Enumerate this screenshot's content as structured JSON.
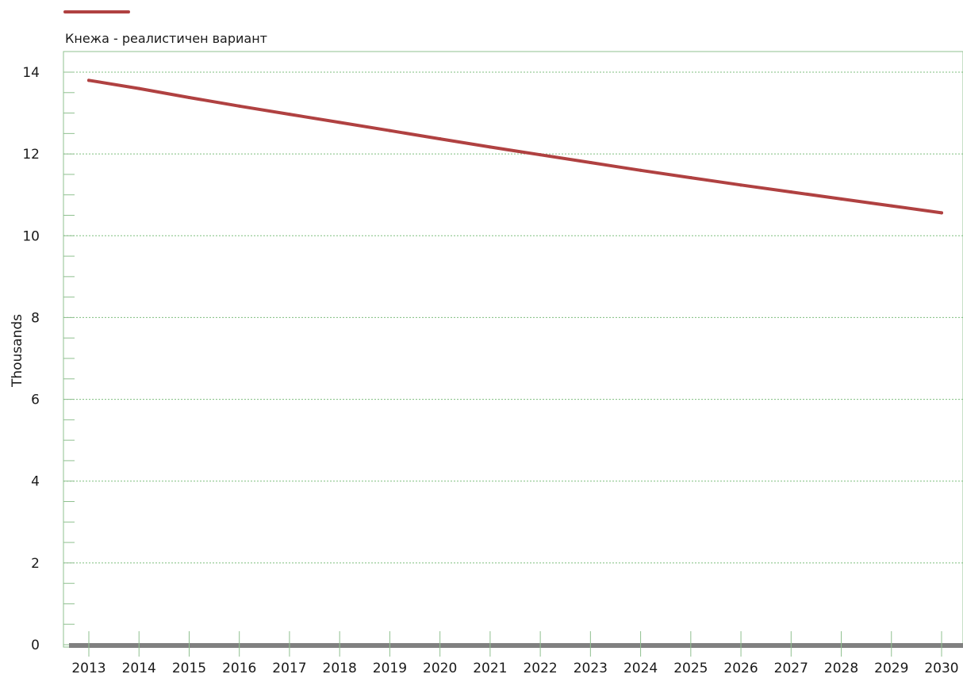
{
  "chart_data": {
    "type": "line",
    "x": [
      "2013",
      "2014",
      "2015",
      "2016",
      "2017",
      "2018",
      "2019",
      "2020",
      "2021",
      "2022",
      "2023",
      "2024",
      "2025",
      "2026",
      "2027",
      "2028",
      "2029",
      "2030"
    ],
    "series": [
      {
        "name": "Кнежа - реалистичен вариант",
        "values": [
          13.8,
          13.6,
          13.38,
          13.17,
          12.97,
          12.77,
          12.57,
          12.37,
          12.17,
          11.98,
          11.79,
          11.6,
          11.42,
          11.24,
          11.07,
          10.9,
          10.73,
          10.56
        ]
      }
    ],
    "ylabel": "Thousands",
    "ylim": [
      0,
      14
    ],
    "yticks": [
      0,
      2,
      4,
      6,
      8,
      10,
      12,
      14
    ],
    "grid": true,
    "legend": "top-left",
    "colors": {
      "series": "#b04141",
      "grid": "#7fbf7f",
      "axis": "#8fc08f",
      "baseline": "#808080"
    }
  }
}
